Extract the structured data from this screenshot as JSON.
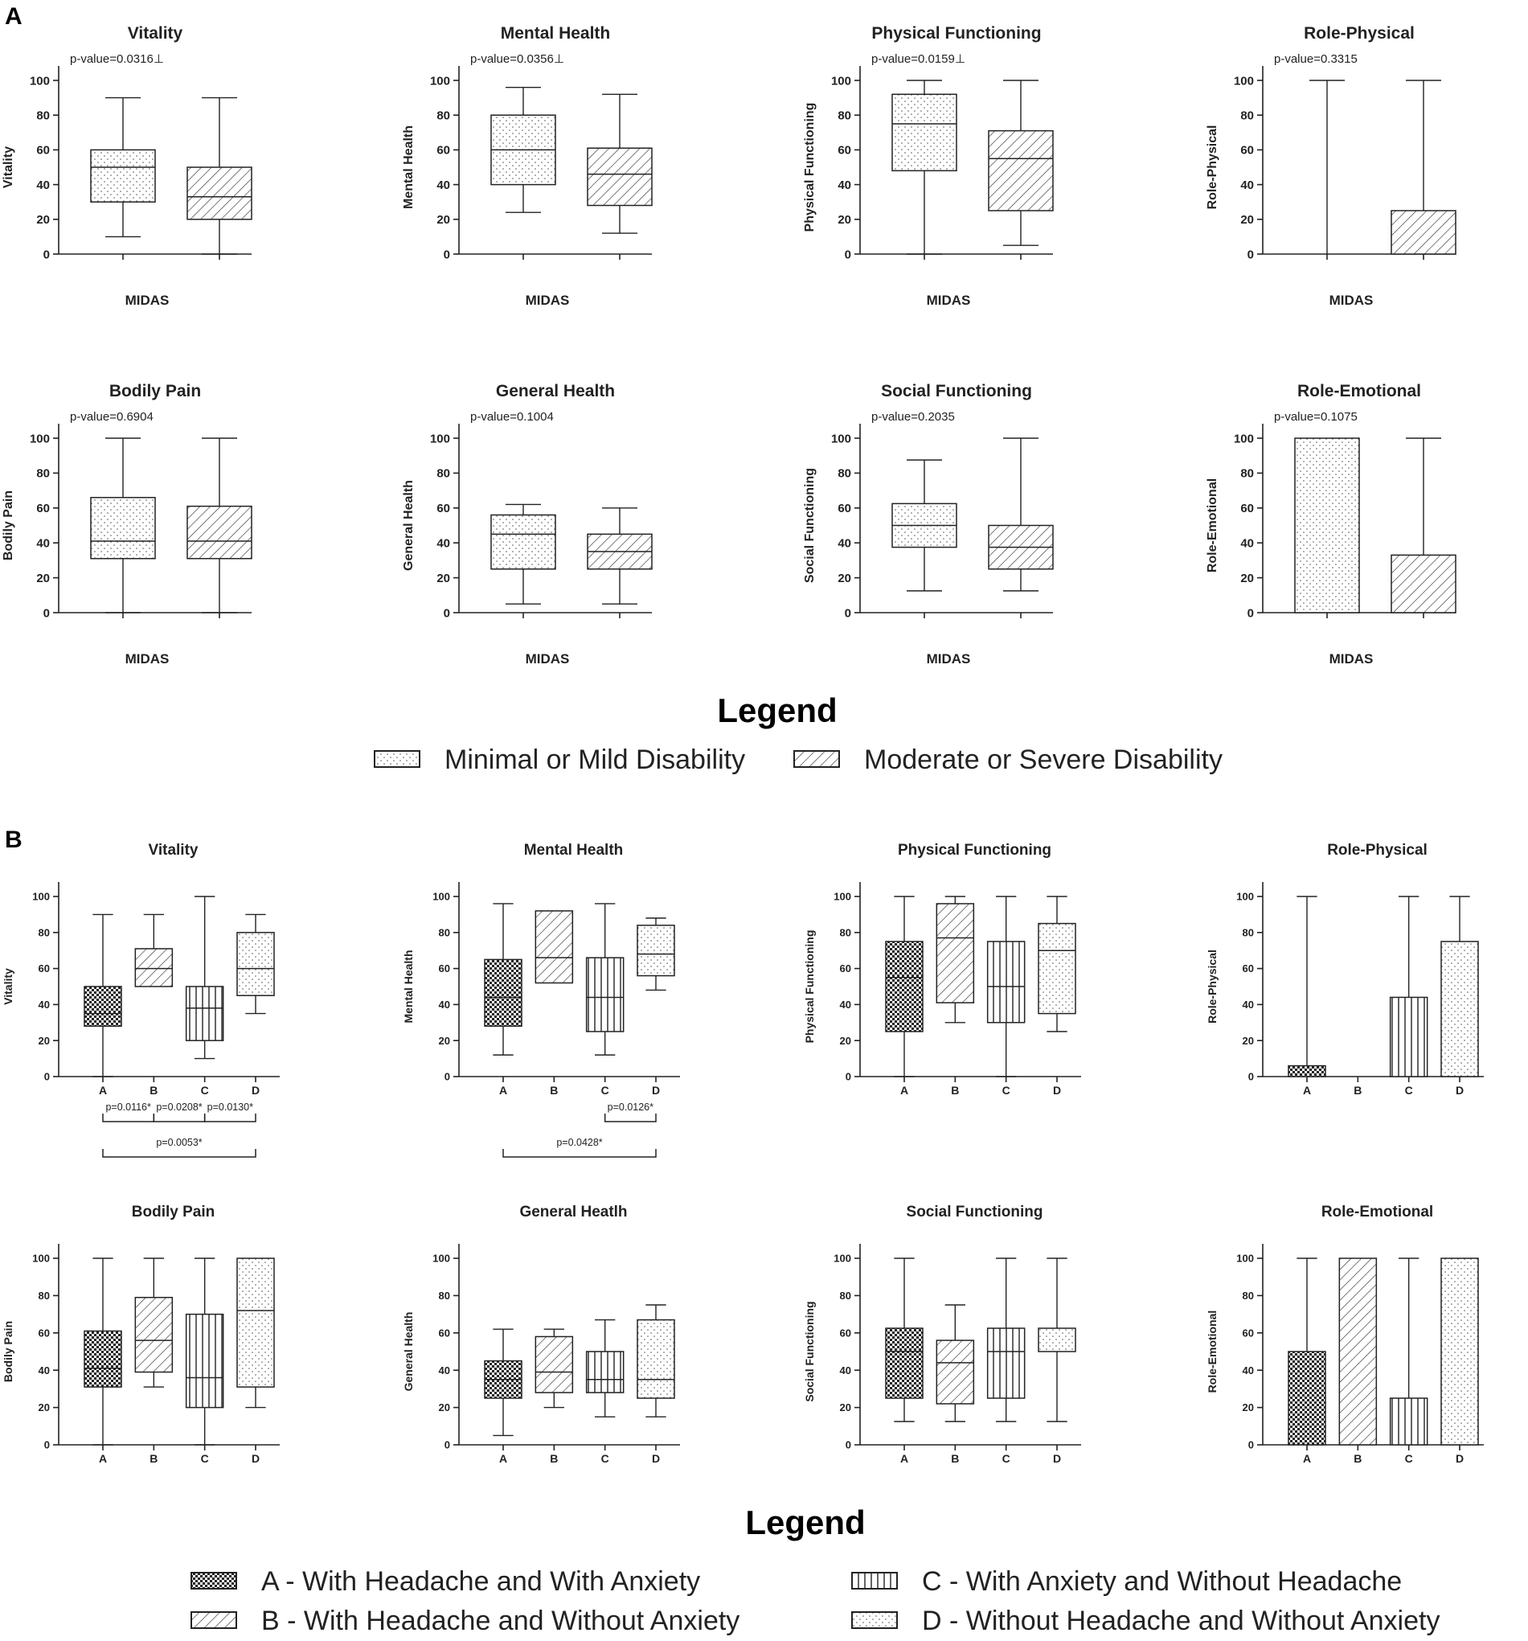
{
  "panels": {
    "A": {
      "label": "A",
      "xlabel": "MIDAS",
      "legend_title": "Legend",
      "legend_items": [
        {
          "key": "mild",
          "label": "Minimal or Mild Disability",
          "pattern": "dots"
        },
        {
          "key": "severe",
          "label": "Moderate or Severe Disability",
          "pattern": "diag"
        }
      ]
    },
    "B": {
      "label": "B",
      "legend_title": "Legend",
      "legend_items": [
        {
          "key": "A",
          "label": "A - With Headache and With Anxiety",
          "pattern": "checker"
        },
        {
          "key": "B",
          "label": "B - With Headache and Without Anxiety",
          "pattern": "diag"
        },
        {
          "key": "C",
          "label": "C - With Anxiety and Without Headache",
          "pattern": "vlines"
        },
        {
          "key": "D",
          "label": "D - Without Headache and Without Anxiety",
          "pattern": "dots"
        }
      ]
    }
  },
  "chart_data": [
    {
      "type": "box",
      "panel": "A",
      "title": "Vitality",
      "ylabel": "Vitality",
      "xlabel": "MIDAS",
      "ylim": [
        0,
        100
      ],
      "yticks": [
        0,
        20,
        40,
        60,
        80,
        100
      ],
      "pvalue": "p-value=0.0316⊥",
      "groups": [
        {
          "key": "mild",
          "min": 10,
          "q1": 30,
          "median": 50,
          "q3": 60,
          "max": 90
        },
        {
          "key": "severe",
          "min": 0,
          "q1": 20,
          "median": 33,
          "q3": 50,
          "max": 90
        }
      ]
    },
    {
      "type": "box",
      "panel": "A",
      "title": "Mental Health",
      "ylabel": "Mental Health",
      "xlabel": "MIDAS",
      "ylim": [
        0,
        100
      ],
      "yticks": [
        0,
        20,
        40,
        60,
        80,
        100
      ],
      "pvalue": "p-value=0.0356⊥",
      "groups": [
        {
          "key": "mild",
          "min": 24,
          "q1": 40,
          "median": 60,
          "q3": 80,
          "max": 96
        },
        {
          "key": "severe",
          "min": 12,
          "q1": 28,
          "median": 46,
          "q3": 61,
          "max": 92
        }
      ]
    },
    {
      "type": "box",
      "panel": "A",
      "title": "Physical Functioning",
      "ylabel": "Physical Functioning",
      "xlabel": "MIDAS",
      "ylim": [
        0,
        100
      ],
      "yticks": [
        0,
        20,
        40,
        60,
        80,
        100
      ],
      "pvalue": "p-value=0.0159⊥",
      "groups": [
        {
          "key": "mild",
          "min": 0,
          "q1": 48,
          "median": 75,
          "q3": 92,
          "max": 100
        },
        {
          "key": "severe",
          "min": 5,
          "q1": 25,
          "median": 55,
          "q3": 71,
          "max": 100
        }
      ]
    },
    {
      "type": "box",
      "panel": "A",
      "title": "Role-Physical",
      "ylabel": "Role-Physical",
      "xlabel": "MIDAS",
      "ylim": [
        0,
        100
      ],
      "yticks": [
        0,
        20,
        40,
        60,
        80,
        100
      ],
      "pvalue": "p-value=0.3315",
      "groups": [
        {
          "key": "mild",
          "min": 0,
          "q1": 0,
          "median": 0,
          "q3": 0,
          "max": 100
        },
        {
          "key": "severe",
          "min": 0,
          "q1": 0,
          "median": 0,
          "q3": 25,
          "max": 100
        }
      ]
    },
    {
      "type": "box",
      "panel": "A",
      "title": "Bodily Pain",
      "ylabel": "Bodily Pain",
      "xlabel": "MIDAS",
      "ylim": [
        0,
        100
      ],
      "yticks": [
        0,
        20,
        40,
        60,
        80,
        100
      ],
      "pvalue": "p-value=0.6904",
      "groups": [
        {
          "key": "mild",
          "min": 0,
          "q1": 31,
          "median": 41,
          "q3": 66,
          "max": 100
        },
        {
          "key": "severe",
          "min": 0,
          "q1": 31,
          "median": 41,
          "q3": 61,
          "max": 100
        }
      ]
    },
    {
      "type": "box",
      "panel": "A",
      "title": "General Health",
      "ylabel": "General Health",
      "xlabel": "MIDAS",
      "ylim": [
        0,
        100
      ],
      "yticks": [
        0,
        20,
        40,
        60,
        80,
        100
      ],
      "pvalue": "p-value=0.1004",
      "groups": [
        {
          "key": "mild",
          "min": 5,
          "q1": 25,
          "median": 45,
          "q3": 56,
          "max": 62
        },
        {
          "key": "severe",
          "min": 5,
          "q1": 25,
          "median": 35,
          "q3": 45,
          "max": 60
        }
      ]
    },
    {
      "type": "box",
      "panel": "A",
      "title": "Social Functioning",
      "ylabel": "Social Functioning",
      "xlabel": "MIDAS",
      "ylim": [
        0,
        100
      ],
      "yticks": [
        0,
        20,
        40,
        60,
        80,
        100
      ],
      "pvalue": "p-value=0.2035",
      "groups": [
        {
          "key": "mild",
          "min": 12.5,
          "q1": 37.5,
          "median": 50,
          "q3": 62.5,
          "max": 87.5
        },
        {
          "key": "severe",
          "min": 12.5,
          "q1": 25,
          "median": 37.5,
          "q3": 50,
          "max": 100
        }
      ]
    },
    {
      "type": "box",
      "panel": "A",
      "title": "Role-Emotional",
      "ylabel": "Role-Emotional",
      "xlabel": "MIDAS",
      "ylim": [
        0,
        100
      ],
      "yticks": [
        0,
        20,
        40,
        60,
        80,
        100
      ],
      "pvalue": "p-value=0.1075",
      "groups": [
        {
          "key": "mild",
          "min": 0,
          "q1": 0,
          "median": 100,
          "q3": 100,
          "max": 100
        },
        {
          "key": "severe",
          "min": 0,
          "q1": 0,
          "median": 0,
          "q3": 33,
          "max": 100
        }
      ]
    },
    {
      "type": "box",
      "panel": "B",
      "title": "Vitality",
      "ylabel": "Vitality",
      "ylim": [
        0,
        100
      ],
      "yticks": [
        0,
        20,
        40,
        60,
        80,
        100
      ],
      "groups": [
        {
          "key": "A",
          "min": 0,
          "q1": 28,
          "median": 35,
          "q3": 50,
          "max": 90
        },
        {
          "key": "B",
          "min": 50,
          "q1": 50,
          "median": 60,
          "q3": 71,
          "max": 90
        },
        {
          "key": "C",
          "min": 10,
          "q1": 20,
          "median": 38,
          "q3": 50,
          "max": 100
        },
        {
          "key": "D",
          "min": 35,
          "q1": 45,
          "median": 60,
          "q3": 80,
          "max": 90
        }
      ],
      "comparisons": [
        {
          "from": "A",
          "to": "B",
          "text": "p=0.0116*"
        },
        {
          "from": "B",
          "to": "C",
          "text": "p=0.0208*"
        },
        {
          "from": "C",
          "to": "D",
          "text": "p=0.0130*"
        },
        {
          "from": "A",
          "to": "D",
          "text": "p=0.0053*"
        }
      ]
    },
    {
      "type": "box",
      "panel": "B",
      "title": "Mental Health",
      "ylabel": "Mental Health",
      "ylim": [
        0,
        100
      ],
      "yticks": [
        0,
        20,
        40,
        60,
        80,
        100
      ],
      "groups": [
        {
          "key": "A",
          "min": 12,
          "q1": 28,
          "median": 44,
          "q3": 65,
          "max": 96
        },
        {
          "key": "B",
          "min": 52,
          "q1": 52,
          "median": 66,
          "q3": 92,
          "max": 92
        },
        {
          "key": "C",
          "min": 12,
          "q1": 25,
          "median": 44,
          "q3": 66,
          "max": 96
        },
        {
          "key": "D",
          "min": 48,
          "q1": 56,
          "median": 68,
          "q3": 84,
          "max": 88
        }
      ],
      "comparisons": [
        {
          "from": "C",
          "to": "D",
          "text": "p=0.0126*"
        },
        {
          "from": "A",
          "to": "D",
          "text": "p=0.0428*"
        }
      ]
    },
    {
      "type": "box",
      "panel": "B",
      "title": "Physical Functioning",
      "ylabel": "Physical Functioning",
      "ylim": [
        0,
        100
      ],
      "yticks": [
        0,
        20,
        40,
        60,
        80,
        100
      ],
      "groups": [
        {
          "key": "A",
          "min": 0,
          "q1": 25,
          "median": 55,
          "q3": 75,
          "max": 100
        },
        {
          "key": "B",
          "min": 30,
          "q1": 41,
          "median": 77,
          "q3": 96,
          "max": 100
        },
        {
          "key": "C",
          "min": 0,
          "q1": 30,
          "median": 50,
          "q3": 75,
          "max": 100
        },
        {
          "key": "D",
          "min": 25,
          "q1": 35,
          "median": 70,
          "q3": 85,
          "max": 100
        }
      ],
      "comparisons": []
    },
    {
      "type": "box",
      "panel": "B",
      "title": "Role-Physical",
      "ylabel": "Role-Physical",
      "ylim": [
        0,
        100
      ],
      "yticks": [
        0,
        20,
        40,
        60,
        80,
        100
      ],
      "groups": [
        {
          "key": "A",
          "min": 0,
          "q1": 0,
          "median": 0,
          "q3": 6,
          "max": 100
        },
        {
          "key": "B",
          "min": 0,
          "q1": 0,
          "median": 0,
          "q3": 0,
          "max": 0
        },
        {
          "key": "C",
          "min": 0,
          "q1": 0,
          "median": 0,
          "q3": 44,
          "max": 100
        },
        {
          "key": "D",
          "min": 0,
          "q1": 0,
          "median": 0,
          "q3": 75,
          "max": 100
        }
      ],
      "comparisons": []
    },
    {
      "type": "box",
      "panel": "B",
      "title": "Bodily Pain",
      "ylabel": "Bodily Pain",
      "ylim": [
        0,
        100
      ],
      "yticks": [
        0,
        20,
        40,
        60,
        80,
        100
      ],
      "groups": [
        {
          "key": "A",
          "min": 0,
          "q1": 31,
          "median": 41,
          "q3": 61,
          "max": 100
        },
        {
          "key": "B",
          "min": 31,
          "q1": 39,
          "median": 56,
          "q3": 79,
          "max": 100
        },
        {
          "key": "C",
          "min": 0,
          "q1": 20,
          "median": 36,
          "q3": 70,
          "max": 100
        },
        {
          "key": "D",
          "min": 20,
          "q1": 31,
          "median": 72,
          "q3": 100,
          "max": 100
        }
      ],
      "comparisons": []
    },
    {
      "type": "box",
      "panel": "B",
      "title": "General Heatlh",
      "ylabel": "General Health",
      "ylim": [
        0,
        100
      ],
      "yticks": [
        0,
        20,
        40,
        60,
        80,
        100
      ],
      "groups": [
        {
          "key": "A",
          "min": 5,
          "q1": 25,
          "median": 35,
          "q3": 45,
          "max": 62
        },
        {
          "key": "B",
          "min": 20,
          "q1": 28,
          "median": 39,
          "q3": 58,
          "max": 62
        },
        {
          "key": "C",
          "min": 15,
          "q1": 28,
          "median": 35,
          "q3": 50,
          "max": 67
        },
        {
          "key": "D",
          "min": 15,
          "q1": 25,
          "median": 35,
          "q3": 67,
          "max": 75
        }
      ],
      "comparisons": []
    },
    {
      "type": "box",
      "panel": "B",
      "title": "Social Functioning",
      "ylabel": "Social Functioning",
      "ylim": [
        0,
        100
      ],
      "yticks": [
        0,
        20,
        40,
        60,
        80,
        100
      ],
      "groups": [
        {
          "key": "A",
          "min": 12.5,
          "q1": 25,
          "median": 50,
          "q3": 62.5,
          "max": 100
        },
        {
          "key": "B",
          "min": 12.5,
          "q1": 22,
          "median": 44,
          "q3": 56,
          "max": 75
        },
        {
          "key": "C",
          "min": 12.5,
          "q1": 25,
          "median": 50,
          "q3": 62.5,
          "max": 100
        },
        {
          "key": "D",
          "min": 12.5,
          "q1": 50,
          "median": 62.5,
          "q3": 62.5,
          "max": 100
        }
      ],
      "comparisons": []
    },
    {
      "type": "box",
      "panel": "B",
      "title": "Role-Emotional",
      "ylabel": "Role-Emotional",
      "ylim": [
        0,
        100
      ],
      "yticks": [
        0,
        20,
        40,
        60,
        80,
        100
      ],
      "groups": [
        {
          "key": "A",
          "min": 0,
          "q1": 0,
          "median": 0,
          "q3": 50,
          "max": 100
        },
        {
          "key": "B",
          "min": 0,
          "q1": 0,
          "median": 100,
          "q3": 100,
          "max": 100
        },
        {
          "key": "C",
          "min": 0,
          "q1": 0,
          "median": 0,
          "q3": 25,
          "max": 100
        },
        {
          "key": "D",
          "min": 0,
          "q1": 0,
          "median": 100,
          "q3": 100,
          "max": 100
        }
      ],
      "comparisons": []
    }
  ]
}
